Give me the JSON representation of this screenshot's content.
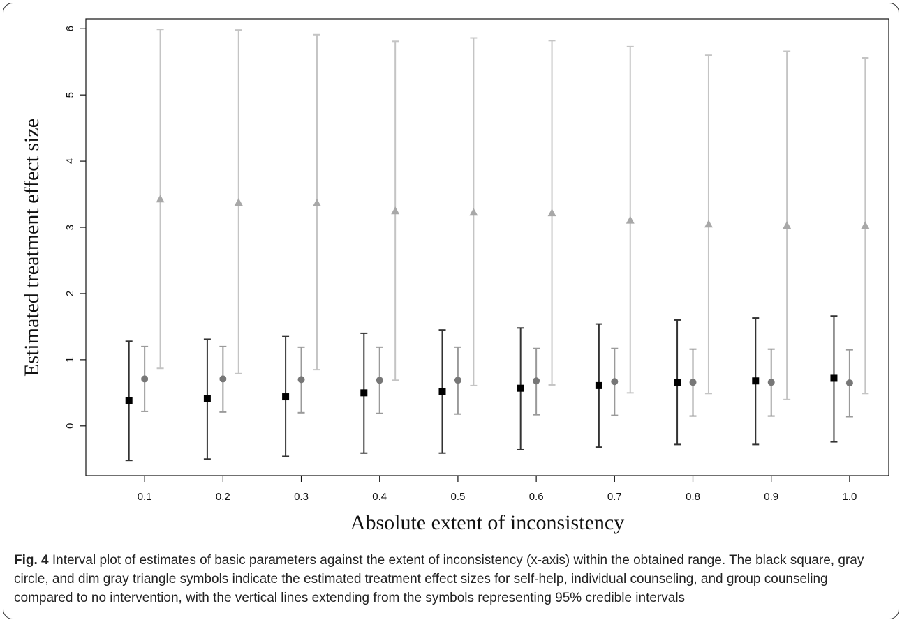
{
  "caption": {
    "label": "Fig. 4",
    "text": "Interval plot of estimates of basic parameters against the extent of inconsistency (x-axis) within the obtained range. The black square, gray circle, and dim gray triangle symbols indicate the estimated treatment effect sizes for self-help, individual counseling, and group counseling compared to no intervention, with the vertical lines extending from the symbols representing 95% credible intervals"
  },
  "chart_data": {
    "type": "scatter",
    "title": "",
    "xlabel": "Absolute extent of inconsistency",
    "ylabel": "Estimated treatment effect size",
    "categories": [
      "0.1",
      "0.2",
      "0.3",
      "0.4",
      "0.5",
      "0.6",
      "0.7",
      "0.8",
      "0.9",
      "1.0"
    ],
    "x_ticks": [
      0.1,
      0.2,
      0.3,
      0.4,
      0.5,
      0.6,
      0.7,
      0.8,
      0.9,
      1.0
    ],
    "y_ticks": [
      0,
      1,
      2,
      3,
      4,
      5,
      6
    ],
    "xlim": [
      0.025,
      1.05
    ],
    "ylim": [
      -0.75,
      6.15
    ],
    "grid": false,
    "legend": "none",
    "series": [
      {
        "marker": "square",
        "color": "#000000",
        "line_color": "#333333",
        "offset": -0.02,
        "estimate": [
          0.38,
          0.41,
          0.44,
          0.5,
          0.52,
          0.57,
          0.61,
          0.66,
          0.68,
          0.72
        ],
        "lower": [
          -0.52,
          -0.5,
          -0.46,
          -0.41,
          -0.41,
          -0.36,
          -0.32,
          -0.28,
          -0.28,
          -0.24
        ],
        "upper": [
          1.28,
          1.31,
          1.35,
          1.4,
          1.45,
          1.48,
          1.54,
          1.6,
          1.63,
          1.66
        ]
      },
      {
        "marker": "circle",
        "color": "#777777",
        "line_color": "#9a9a9a",
        "offset": 0.0,
        "estimate": [
          0.71,
          0.71,
          0.7,
          0.69,
          0.69,
          0.68,
          0.67,
          0.66,
          0.66,
          0.65
        ],
        "lower": [
          0.22,
          0.21,
          0.2,
          0.19,
          0.18,
          0.17,
          0.16,
          0.15,
          0.15,
          0.14
        ],
        "upper": [
          1.2,
          1.2,
          1.19,
          1.19,
          1.19,
          1.17,
          1.17,
          1.16,
          1.16,
          1.15
        ]
      },
      {
        "marker": "triangle",
        "color": "#a8a8a8",
        "line_color": "#c4c4c4",
        "offset": 0.02,
        "estimate": [
          3.43,
          3.38,
          3.37,
          3.25,
          3.23,
          3.22,
          3.11,
          3.05,
          3.03,
          3.03
        ],
        "lower": [
          0.87,
          0.79,
          0.85,
          0.69,
          0.61,
          0.62,
          0.5,
          0.49,
          0.4,
          0.49
        ],
        "upper": [
          5.99,
          5.98,
          5.91,
          5.81,
          5.86,
          5.82,
          5.73,
          5.6,
          5.66,
          5.56
        ]
      }
    ]
  }
}
